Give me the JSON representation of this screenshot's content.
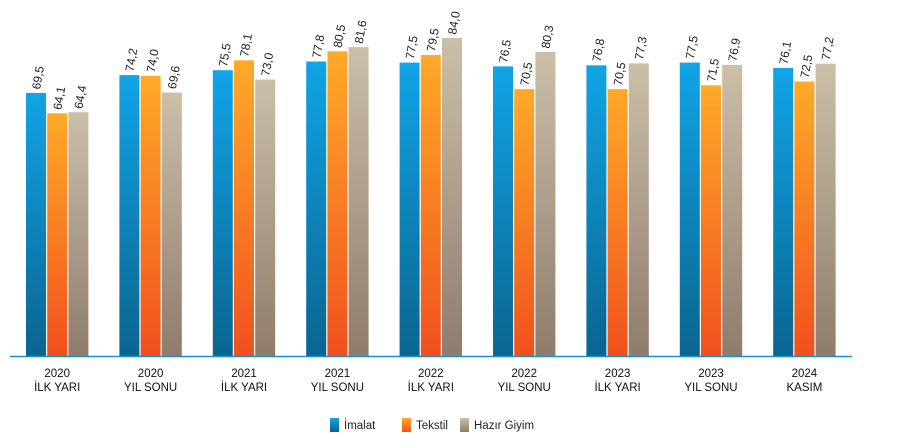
{
  "chart_data": {
    "type": "bar",
    "title": "",
    "xlabel": "",
    "ylabel": "",
    "grid": false,
    "legend_position": "bottom-center",
    "ylim": [
      0,
      84
    ],
    "categories": [
      [
        "2020",
        "İLK YARI"
      ],
      [
        "2020",
        "YIL SONU"
      ],
      [
        "2021",
        "İLK YARI"
      ],
      [
        "2021",
        "YIL SONU"
      ],
      [
        "2022",
        "İLK YARI"
      ],
      [
        "2022",
        "YIL SONU"
      ],
      [
        "2023",
        "İLK YARI"
      ],
      [
        "2023",
        "YIL SONU"
      ],
      [
        "2024",
        "KASIM"
      ]
    ],
    "series": [
      {
        "name": "İmalat",
        "colors": [
          "#11a4e6",
          "#0a6590"
        ],
        "values": [
          69.5,
          74.2,
          75.5,
          77.8,
          77.5,
          76.5,
          76.8,
          77.5,
          76.1
        ],
        "labels": [
          "69,5",
          "74,2",
          "75,5",
          "77,8",
          "77,5",
          "76,5",
          "76,8",
          "77,5",
          "76,1"
        ]
      },
      {
        "name": "Tekstil",
        "colors": [
          "#ffaa28",
          "#f0501e"
        ],
        "values": [
          64.1,
          74.0,
          78.1,
          80.5,
          79.5,
          70.5,
          70.5,
          71.5,
          72.5
        ],
        "labels": [
          "64,1",
          "74,0",
          "78,1",
          "80,5",
          "79,5",
          "70,5",
          "70,5",
          "71,5",
          "72,5"
        ]
      },
      {
        "name": "Hazır Giyim",
        "colors": [
          "#cbbfa8",
          "#8f7c6c"
        ],
        "values": [
          64.4,
          69.6,
          73.0,
          81.6,
          84.0,
          80.3,
          77.3,
          76.9,
          77.2
        ],
        "labels": [
          "64,4",
          "69,6",
          "73,0",
          "81,6",
          "84,0",
          "80,3",
          "77,3",
          "76,9",
          "77,2"
        ]
      }
    ],
    "axis_color": "#1b8fc9"
  }
}
